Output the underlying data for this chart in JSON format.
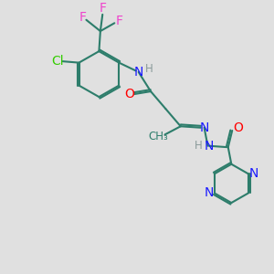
{
  "bg_color": "#e0e0e0",
  "bond_color": "#2d7d6b",
  "N_color": "#1a1aff",
  "O_color": "#ff0000",
  "Cl_color": "#33cc00",
  "F_color": "#ee44cc",
  "H_color": "#8a9a9a",
  "line_width": 1.5,
  "font_size": 10,
  "fig_size": [
    3.0,
    3.0
  ],
  "dpi": 100,
  "xlim": [
    0,
    10
  ],
  "ylim": [
    0,
    10
  ]
}
